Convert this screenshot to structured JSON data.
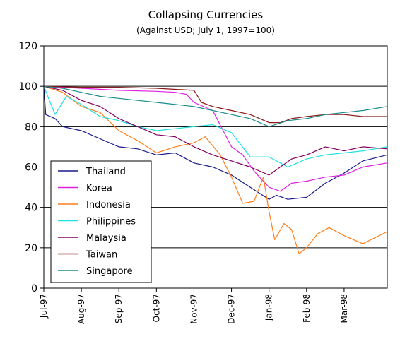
{
  "chart_data": {
    "type": "line",
    "title": "Collapsing Currencies",
    "subtitle": "(Against USD; July 1, 1997=100)",
    "xlabel": "",
    "ylabel": "",
    "ylim": [
      0,
      120
    ],
    "yticks": [
      0,
      20,
      40,
      60,
      80,
      100,
      120
    ],
    "xrange": [
      0,
      9.15
    ],
    "xticks": [
      {
        "label": "Jul-97",
        "x": 0
      },
      {
        "label": "Aug-97",
        "x": 1
      },
      {
        "label": "Sep-97",
        "x": 2
      },
      {
        "label": "Oct-97",
        "x": 3
      },
      {
        "label": "Nov-97",
        "x": 4
      },
      {
        "label": "Dec-97",
        "x": 5
      },
      {
        "label": "Jan-98",
        "x": 6
      },
      {
        "label": "Feb-98",
        "x": 7
      },
      {
        "label": "Mar-98",
        "x": 8
      }
    ],
    "grid": "horizontal",
    "legend": "bottom-left",
    "series": [
      {
        "name": "Thailand",
        "color": "#1a1a8c",
        "points": [
          [
            0,
            100
          ],
          [
            0.05,
            86
          ],
          [
            0.3,
            84
          ],
          [
            0.5,
            80
          ],
          [
            1,
            78
          ],
          [
            1.5,
            74
          ],
          [
            2,
            70
          ],
          [
            2.5,
            69
          ],
          [
            3,
            66
          ],
          [
            3.5,
            67
          ],
          [
            4,
            62
          ],
          [
            4.5,
            60
          ],
          [
            5,
            56
          ],
          [
            5.5,
            50
          ],
          [
            6,
            44
          ],
          [
            6.2,
            46
          ],
          [
            6.5,
            44
          ],
          [
            7,
            45
          ],
          [
            7.5,
            52
          ],
          [
            8,
            57
          ],
          [
            8.5,
            63
          ],
          [
            9.15,
            66
          ]
        ]
      },
      {
        "name": "Korea",
        "color": "#e020e0",
        "points": [
          [
            0,
            100
          ],
          [
            1,
            99
          ],
          [
            2,
            98
          ],
          [
            3,
            97.5
          ],
          [
            3.5,
            97
          ],
          [
            3.8,
            96
          ],
          [
            4,
            92
          ],
          [
            4.5,
            88
          ],
          [
            5,
            70
          ],
          [
            5.3,
            66
          ],
          [
            5.6,
            58
          ],
          [
            6,
            50
          ],
          [
            6.3,
            48
          ],
          [
            6.6,
            52
          ],
          [
            7,
            53
          ],
          [
            7.5,
            55
          ],
          [
            8,
            56
          ],
          [
            8.5,
            60
          ],
          [
            9.15,
            62
          ]
        ]
      },
      {
        "name": "Indonesia",
        "color": "#ff7f1a",
        "points": [
          [
            0,
            100
          ],
          [
            0.5,
            97
          ],
          [
            1,
            90
          ],
          [
            1.5,
            87
          ],
          [
            2,
            78
          ],
          [
            2.5,
            73
          ],
          [
            3,
            67
          ],
          [
            3.5,
            70
          ],
          [
            4,
            72
          ],
          [
            4.3,
            75
          ],
          [
            4.7,
            66
          ],
          [
            5,
            55
          ],
          [
            5.3,
            42
          ],
          [
            5.6,
            43
          ],
          [
            5.85,
            55
          ],
          [
            6,
            38
          ],
          [
            6.15,
            24
          ],
          [
            6.4,
            32
          ],
          [
            6.6,
            29
          ],
          [
            6.8,
            17
          ],
          [
            7,
            20
          ],
          [
            7.3,
            27
          ],
          [
            7.6,
            30
          ],
          [
            8,
            26
          ],
          [
            8.5,
            22
          ],
          [
            9.15,
            28
          ]
        ]
      },
      {
        "name": "Philippines",
        "color": "#20e0e0",
        "points": [
          [
            0,
            100
          ],
          [
            0.3,
            86
          ],
          [
            0.6,
            95
          ],
          [
            1,
            91
          ],
          [
            1.5,
            85
          ],
          [
            2,
            83
          ],
          [
            2.5,
            80
          ],
          [
            3,
            78
          ],
          [
            3.5,
            79
          ],
          [
            4,
            80
          ],
          [
            4.5,
            81
          ],
          [
            5,
            77
          ],
          [
            5.5,
            65
          ],
          [
            6,
            65
          ],
          [
            6.5,
            60
          ],
          [
            7,
            64
          ],
          [
            7.5,
            66
          ],
          [
            8,
            67
          ],
          [
            8.5,
            68
          ],
          [
            9.15,
            70
          ]
        ]
      },
      {
        "name": "Malaysia",
        "color": "#800060",
        "points": [
          [
            0,
            100
          ],
          [
            0.5,
            98
          ],
          [
            1,
            93
          ],
          [
            1.5,
            90
          ],
          [
            2,
            84
          ],
          [
            2.5,
            80
          ],
          [
            3,
            76
          ],
          [
            3.5,
            75
          ],
          [
            4,
            70
          ],
          [
            4.5,
            66
          ],
          [
            5,
            63
          ],
          [
            5.5,
            60
          ],
          [
            6,
            56
          ],
          [
            6.3,
            60
          ],
          [
            6.6,
            64
          ],
          [
            7,
            66
          ],
          [
            7.5,
            70
          ],
          [
            8,
            68
          ],
          [
            8.5,
            70
          ],
          [
            9.15,
            69
          ]
        ]
      },
      {
        "name": "Taiwan",
        "color": "#8b1a1a",
        "points": [
          [
            0,
            100
          ],
          [
            1,
            99.5
          ],
          [
            2,
            99.5
          ],
          [
            3,
            99
          ],
          [
            4,
            98
          ],
          [
            4.2,
            92
          ],
          [
            4.5,
            90
          ],
          [
            5,
            88
          ],
          [
            5.5,
            86
          ],
          [
            6,
            82
          ],
          [
            6.3,
            82
          ],
          [
            6.6,
            84
          ],
          [
            7,
            85
          ],
          [
            7.5,
            86
          ],
          [
            8,
            86
          ],
          [
            8.5,
            85
          ],
          [
            9.15,
            85
          ]
        ]
      },
      {
        "name": "Singapore",
        "color": "#1a8c8c",
        "points": [
          [
            0,
            100
          ],
          [
            0.5,
            99
          ],
          [
            1,
            97
          ],
          [
            1.5,
            95
          ],
          [
            2,
            94
          ],
          [
            2.5,
            93
          ],
          [
            3,
            92
          ],
          [
            3.5,
            91
          ],
          [
            4,
            90
          ],
          [
            4.5,
            88
          ],
          [
            5,
            86
          ],
          [
            5.5,
            84
          ],
          [
            6,
            80
          ],
          [
            6.5,
            83
          ],
          [
            7,
            84
          ],
          [
            7.5,
            86
          ],
          [
            8,
            87
          ],
          [
            8.5,
            88
          ],
          [
            9.15,
            90
          ]
        ]
      }
    ]
  }
}
